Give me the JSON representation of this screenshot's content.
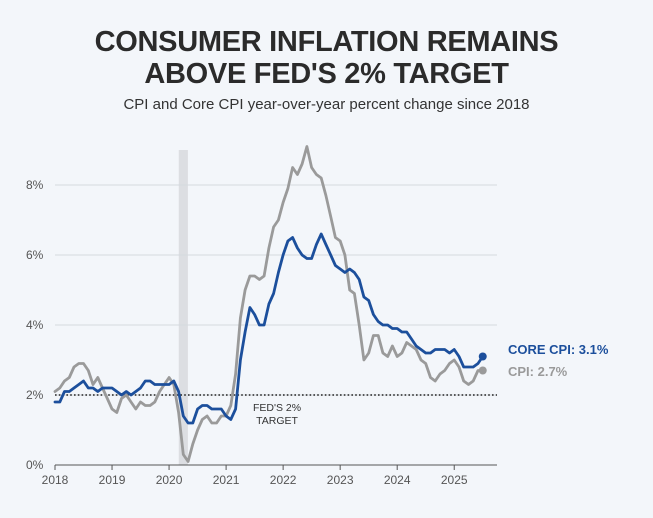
{
  "title_line1": "CONSUMER INFLATION REMAINS",
  "title_line2": "ABOVE FED'S 2% TARGET",
  "subtitle": "CPI and Core CPI year-over-year percent change since 2018",
  "colors": {
    "core": "#1c4f9c",
    "cpi": "#9a9a9a",
    "recession": "#dcdee2",
    "grid": "#d5d9df"
  },
  "chart_data": {
    "type": "line",
    "title": "CONSUMER INFLATION REMAINS ABOVE FED'S 2% TARGET",
    "subtitle": "CPI and Core CPI year-over-year percent change since 2018",
    "xlabel": "",
    "ylabel": "",
    "xlim": [
      2018.0,
      2025.75
    ],
    "ylim": [
      0,
      9
    ],
    "x_ticks": [
      2018,
      2019,
      2020,
      2021,
      2022,
      2023,
      2024,
      2025
    ],
    "x_tick_labels": [
      "2018",
      "2019",
      "2020",
      "2021",
      "2022",
      "2023",
      "2024",
      "2025"
    ],
    "y_ticks": [
      0,
      2,
      4,
      6,
      8
    ],
    "y_tick_labels": [
      "0%",
      "2%",
      "4%",
      "6%",
      "8%"
    ],
    "grid": "horizontal",
    "shaded_region": {
      "label": "",
      "x0": 2020.17,
      "x1": 2020.33
    },
    "reference_line": {
      "y": 2,
      "label_line1": "FED'S 2%",
      "label_line2": "TARGET"
    },
    "series": [
      {
        "name": "CPI",
        "end_label": "CPI: 2.7%",
        "color": "#9a9a9a",
        "start": 2018.0,
        "step": 0.0833333,
        "values": [
          2.1,
          2.2,
          2.4,
          2.5,
          2.8,
          2.9,
          2.9,
          2.7,
          2.3,
          2.5,
          2.2,
          1.9,
          1.6,
          1.5,
          1.9,
          2.0,
          1.8,
          1.6,
          1.8,
          1.7,
          1.7,
          1.8,
          2.1,
          2.3,
          2.5,
          2.3,
          1.5,
          0.3,
          0.1,
          0.6,
          1.0,
          1.3,
          1.4,
          1.2,
          1.2,
          1.4,
          1.4,
          1.7,
          2.6,
          4.2,
          5.0,
          5.4,
          5.4,
          5.3,
          5.4,
          6.2,
          6.8,
          7.0,
          7.5,
          7.9,
          8.5,
          8.3,
          8.6,
          9.1,
          8.5,
          8.3,
          8.2,
          7.7,
          7.1,
          6.5,
          6.4,
          6.0,
          5.0,
          4.9,
          4.0,
          3.0,
          3.2,
          3.7,
          3.7,
          3.2,
          3.1,
          3.4,
          3.1,
          3.2,
          3.5,
          3.4,
          3.3,
          3.0,
          2.9,
          2.5,
          2.4,
          2.6,
          2.7,
          2.9,
          3.0,
          2.8,
          2.4,
          2.3,
          2.4,
          2.7,
          2.7
        ]
      },
      {
        "name": "Core CPI",
        "end_label": "CORE CPI: 3.1%",
        "color": "#1c4f9c",
        "start": 2018.0,
        "step": 0.0833333,
        "values": [
          1.8,
          1.8,
          2.1,
          2.1,
          2.2,
          2.3,
          2.4,
          2.2,
          2.2,
          2.1,
          2.2,
          2.2,
          2.2,
          2.1,
          2.0,
          2.1,
          2.0,
          2.1,
          2.2,
          2.4,
          2.4,
          2.3,
          2.3,
          2.3,
          2.3,
          2.4,
          2.1,
          1.4,
          1.2,
          1.2,
          1.6,
          1.7,
          1.7,
          1.6,
          1.6,
          1.6,
          1.4,
          1.3,
          1.6,
          3.0,
          3.8,
          4.5,
          4.3,
          4.0,
          4.0,
          4.6,
          4.9,
          5.5,
          6.0,
          6.4,
          6.5,
          6.2,
          6.0,
          5.9,
          5.9,
          6.3,
          6.6,
          6.3,
          6.0,
          5.7,
          5.6,
          5.5,
          5.6,
          5.5,
          5.3,
          4.8,
          4.7,
          4.3,
          4.1,
          4.0,
          4.0,
          3.9,
          3.9,
          3.8,
          3.8,
          3.6,
          3.4,
          3.3,
          3.2,
          3.2,
          3.3,
          3.3,
          3.3,
          3.2,
          3.3,
          3.1,
          2.8,
          2.8,
          2.8,
          2.9,
          3.1
        ]
      }
    ]
  }
}
